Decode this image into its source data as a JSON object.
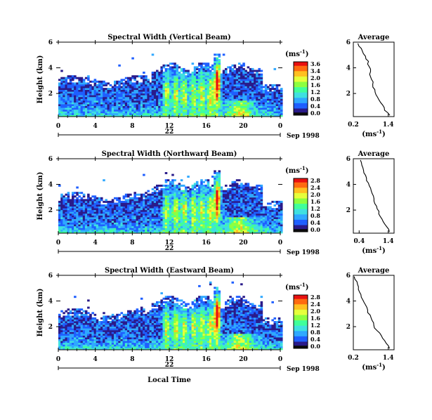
{
  "chart_data": [
    {
      "type": "heatmap",
      "title": "Spectral Width (Vertical Beam)",
      "ylabel": "Height (km)",
      "x_ticks": [
        "0",
        "4",
        "8",
        "12",
        "16",
        "20",
        "0"
      ],
      "y_ticks": [
        "6",
        "4",
        "2"
      ],
      "date_marker": "22",
      "date_label": "Sep 1998",
      "xlim": [
        0,
        24
      ],
      "ylim": [
        0.2,
        6
      ],
      "colorbar": {
        "unit_label": "(ms",
        "unit_exp": "-1",
        "unit_close": ")",
        "ticks": [
          "3.6",
          "3.4",
          "2.0",
          "1.6",
          "1.2",
          "0.8",
          "0.4",
          "0.0"
        ]
      },
      "profile": {
        "title": "Average",
        "xlabel": "(ms",
        "xlabel_exp": "-1",
        "xlabel_close": ")",
        "x_ticks": [
          "0.2",
          "1.4"
        ],
        "y_ticks": [
          "6",
          "4",
          "2"
        ],
        "xlim": [
          0.2,
          1.6
        ],
        "ylim": [
          0.2,
          6
        ],
        "x": [
          1.45,
          1.4,
          1.3,
          1.25,
          1.2,
          1.15,
          1.1,
          1.05,
          1.0,
          0.95,
          0.95,
          0.9,
          0.88,
          0.85,
          0.85,
          0.82,
          0.78,
          0.8,
          0.78,
          0.75,
          0.72,
          0.7,
          0.65,
          0.6,
          0.55,
          0.5,
          0.45,
          0.4,
          0.35
        ],
        "y": [
          0.3,
          0.5,
          0.7,
          0.9,
          1.1,
          1.3,
          1.5,
          1.7,
          1.9,
          2.1,
          2.3,
          2.5,
          2.7,
          2.9,
          3.1,
          3.3,
          3.5,
          3.7,
          3.9,
          4.1,
          4.3,
          4.5,
          4.7,
          4.9,
          5.1,
          5.3,
          5.5,
          5.7,
          5.9
        ]
      }
    },
    {
      "type": "heatmap",
      "title": "Spectral Width (Northward Beam)",
      "ylabel": "Height (km)",
      "x_ticks": [
        "0",
        "4",
        "8",
        "12",
        "16",
        "20",
        "0"
      ],
      "y_ticks": [
        "6",
        "4",
        "2"
      ],
      "date_marker": "22",
      "date_label": "Sep 1998",
      "xlim": [
        0,
        24
      ],
      "ylim": [
        0.2,
        6
      ],
      "colorbar": {
        "unit_label": "(ms",
        "unit_exp": "-1",
        "unit_close": ")",
        "ticks": [
          "2.8",
          "2.4",
          "2.0",
          "1.6",
          "1.2",
          "0.8",
          "0.4",
          "0.0"
        ]
      },
      "profile": {
        "title": "Average",
        "xlabel": "(ms",
        "xlabel_exp": "-1",
        "xlabel_close": ")",
        "x_ticks": [
          "0.4",
          "1.4"
        ],
        "y_ticks": [
          "6",
          "4",
          "2"
        ],
        "xlim": [
          0.2,
          1.6
        ],
        "ylim": [
          0.2,
          6
        ],
        "x": [
          1.45,
          1.42,
          1.35,
          1.3,
          1.25,
          1.2,
          1.15,
          1.1,
          1.05,
          1.0,
          0.98,
          0.95,
          0.92,
          0.9,
          0.88,
          0.85,
          0.82,
          0.8,
          0.76,
          0.72,
          0.68,
          0.65,
          0.6,
          0.58,
          0.55,
          0.5,
          0.48,
          0.45,
          0.42
        ],
        "y": [
          0.3,
          0.5,
          0.7,
          0.9,
          1.1,
          1.3,
          1.5,
          1.7,
          1.9,
          2.1,
          2.3,
          2.5,
          2.7,
          2.9,
          3.1,
          3.3,
          3.5,
          3.7,
          3.9,
          4.1,
          4.3,
          4.5,
          4.7,
          4.9,
          5.1,
          5.3,
          5.5,
          5.7,
          5.9
        ]
      }
    },
    {
      "type": "heatmap",
      "title": "Spectral Width (Eastward Beam)",
      "ylabel": "Height (km)",
      "xlabel": "Local Time",
      "x_ticks": [
        "0",
        "4",
        "8",
        "12",
        "16",
        "20",
        "0"
      ],
      "y_ticks": [
        "6",
        "4",
        "2"
      ],
      "date_marker": "22",
      "date_label": "Sep 1998",
      "xlim": [
        0,
        24
      ],
      "ylim": [
        0.2,
        6
      ],
      "colorbar": {
        "unit_label": "(ms",
        "unit_exp": "-1",
        "unit_close": ")",
        "ticks": [
          "2.8",
          "2.4",
          "2.0",
          "1.6",
          "1.2",
          "0.8",
          "0.4",
          "0.0"
        ]
      },
      "profile": {
        "title": "Average",
        "xlabel": "(ms",
        "xlabel_exp": "-1",
        "xlabel_close": ")",
        "x_ticks": [
          "0.2",
          "1.4"
        ],
        "y_ticks": [
          "6",
          "4",
          "2"
        ],
        "xlim": [
          0.2,
          1.6
        ],
        "ylim": [
          0.2,
          6
        ],
        "x": [
          1.45,
          1.4,
          1.35,
          1.3,
          1.2,
          1.15,
          1.1,
          1.0,
          0.95,
          0.9,
          0.88,
          0.85,
          0.8,
          0.76,
          0.72,
          0.7,
          0.65,
          0.62,
          0.58,
          0.55,
          0.5,
          0.45,
          0.42,
          0.4,
          0.35,
          0.32,
          0.3,
          0.28,
          0.25
        ],
        "y": [
          0.3,
          0.5,
          0.7,
          0.9,
          1.1,
          1.3,
          1.5,
          1.7,
          1.9,
          2.1,
          2.3,
          2.5,
          2.7,
          2.9,
          3.1,
          3.3,
          3.5,
          3.7,
          3.9,
          4.1,
          4.3,
          4.5,
          4.7,
          4.9,
          5.1,
          5.3,
          5.5,
          5.7,
          5.9
        ]
      }
    }
  ],
  "palette": [
    "#0a0a0a",
    "#2a1b8a",
    "#1f5fff",
    "#2fa8ff",
    "#3fe0e0",
    "#40ff9a",
    "#8dff40",
    "#e6ff3a",
    "#ffc020",
    "#ff6a10",
    "#e81010"
  ]
}
